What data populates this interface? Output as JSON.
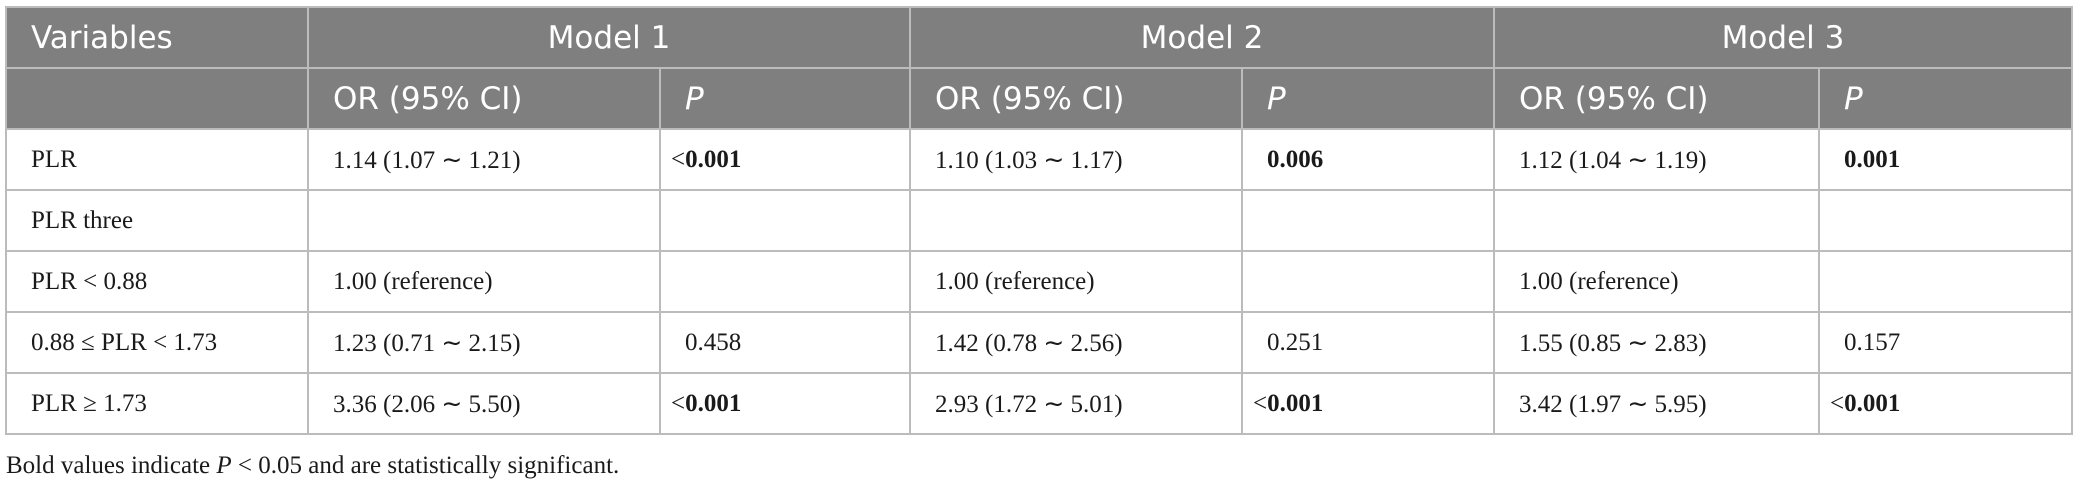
{
  "header": {
    "variables": "Variables",
    "models": [
      "Model 1",
      "Model 2",
      "Model 3"
    ],
    "or_label": "OR (95% CI)",
    "p_label": "P"
  },
  "rows": [
    {
      "label": "PLR",
      "m1_or": "1.14 (1.07 ∼ 1.21)",
      "m1_p_prefix": "<",
      "m1_p": "0.001",
      "m2_or": "1.10 (1.03 ∼ 1.17)",
      "m2_p_prefix": "",
      "m2_p": "0.006",
      "m3_or": "1.12 (1.04 ∼ 1.19)",
      "m3_p_prefix": "",
      "m3_p": "0.001"
    },
    {
      "label": "PLR three",
      "m1_or": "",
      "m1_p_prefix": "",
      "m1_p": "",
      "m2_or": "",
      "m2_p_prefix": "",
      "m2_p": "",
      "m3_or": "",
      "m3_p_prefix": "",
      "m3_p": ""
    },
    {
      "label": "PLR < 0.88",
      "m1_or": "1.00 (reference)",
      "m1_p_prefix": "",
      "m1_p": "",
      "m2_or": "1.00 (reference)",
      "m2_p_prefix": "",
      "m2_p": "",
      "m3_or": "1.00 (reference)",
      "m3_p_prefix": "",
      "m3_p": ""
    },
    {
      "label": "0.88 ≤ PLR < 1.73",
      "m1_or": "1.23 (0.71 ∼ 2.15)",
      "m1_p_prefix": "",
      "m1_p": "0.458",
      "m2_or": "1.42 (0.78 ∼ 2.56)",
      "m2_p_prefix": "",
      "m2_p": "0.251",
      "m3_or": "1.55 (0.85 ∼ 2.83)",
      "m3_p_prefix": "",
      "m3_p": "0.157"
    },
    {
      "label": "PLR ≥ 1.73",
      "m1_or": "3.36 (2.06 ∼ 5.50)",
      "m1_p_prefix": "<",
      "m1_p": "0.001",
      "m2_or": "2.93 (1.72 ∼ 5.01)",
      "m2_p_prefix": "<",
      "m2_p": "0.001",
      "m3_or": "3.42 (1.97 ∼ 5.95)",
      "m3_p_prefix": "<",
      "m3_p": "0.001"
    }
  ],
  "footnote": {
    "before": "Bold values indicate ",
    "p": "P",
    "after": " < 0.05 and are statistically significant."
  }
}
